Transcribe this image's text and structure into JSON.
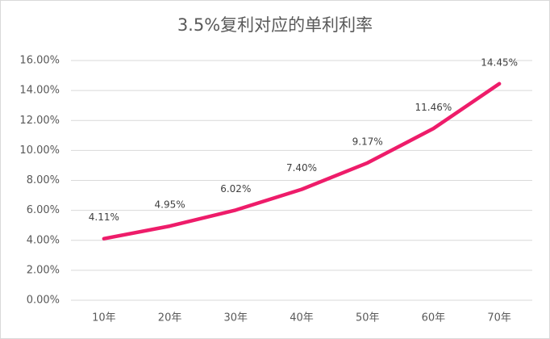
{
  "chart_data": {
    "type": "line",
    "title": "3.5%复利对应的单利利率",
    "categories": [
      "10年",
      "20年",
      "30年",
      "40年",
      "50年",
      "60年",
      "70年"
    ],
    "values": [
      4.11,
      4.95,
      6.02,
      7.4,
      9.17,
      11.46,
      14.45
    ],
    "value_labels": [
      "4.11%",
      "4.95%",
      "6.02%",
      "7.40%",
      "9.17%",
      "11.46%",
      "14.45%"
    ],
    "color": "#ee1c6a",
    "ylim": [
      0,
      16
    ],
    "yticks": [
      {
        "value": 0,
        "label": "0.00%"
      },
      {
        "value": 2,
        "label": "2.00%"
      },
      {
        "value": 4,
        "label": "4.00%"
      },
      {
        "value": 6,
        "label": "6.00%"
      },
      {
        "value": 8,
        "label": "8.00%"
      },
      {
        "value": 10,
        "label": "10.00%"
      },
      {
        "value": 12,
        "label": "12.00%"
      },
      {
        "value": 14,
        "label": "14.00%"
      },
      {
        "value": 16,
        "label": "16.00%"
      }
    ],
    "grid": true
  }
}
